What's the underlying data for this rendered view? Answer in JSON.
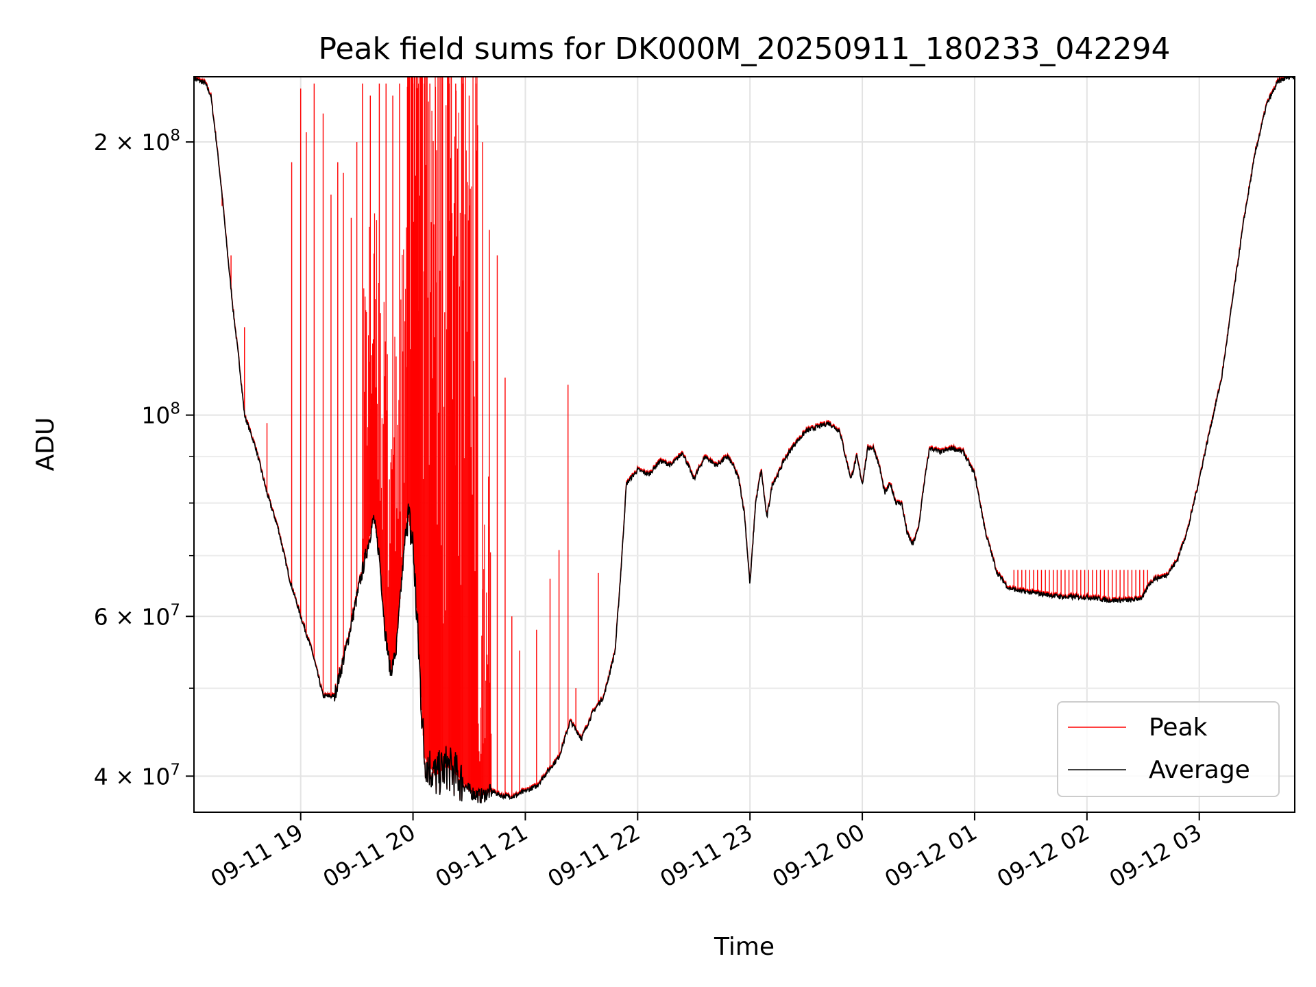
{
  "chart_data": {
    "type": "line",
    "title": "Peak field sums for DK000M_20250911_180233_042294",
    "xlabel": "Time",
    "ylabel": "ADU",
    "yscale": "log",
    "xlim_hours": [
      18.05,
      3.85
    ],
    "ylim": [
      36500000,
      236000000
    ],
    "grid": true,
    "legend_position": "lower-right",
    "x_ticks": [
      {
        "h": 19,
        "label": "09-11 19"
      },
      {
        "h": 20,
        "label": "09-11 20"
      },
      {
        "h": 21,
        "label": "09-11 21"
      },
      {
        "h": 22,
        "label": "09-11 22"
      },
      {
        "h": 23,
        "label": "09-11 23"
      },
      {
        "h": 24,
        "label": "09-12 00"
      },
      {
        "h": 25,
        "label": "09-12 01"
      },
      {
        "h": 26,
        "label": "09-12 02"
      },
      {
        "h": 27,
        "label": "09-12 03"
      }
    ],
    "y_ticks_major": [
      {
        "v": 40000000,
        "mant": "4",
        "exp": "7",
        "label": "4 × 10^7"
      },
      {
        "v": 60000000,
        "mant": "6",
        "exp": "7",
        "label": "6 × 10^7"
      },
      {
        "v": 100000000,
        "mant": "",
        "exp": "8",
        "label": "10^8"
      },
      {
        "v": 200000000,
        "mant": "2",
        "exp": "8",
        "label": "2 × 10^8"
      }
    ],
    "y_ticks_minor": [
      50000000,
      70000000,
      80000000,
      90000000
    ],
    "series": [
      {
        "name": "Peak",
        "color": "#ff0000",
        "note": "baseline follows Average; spikes listed as [hour, ADU]",
        "spikes": [
          [
            18.25,
            200000000
          ],
          [
            18.3,
            170000000
          ],
          [
            18.38,
            150000000
          ],
          [
            18.5,
            125000000
          ],
          [
            18.7,
            98000000
          ],
          [
            18.92,
            190000000
          ],
          [
            19.0,
            229000000
          ],
          [
            19.05,
            205000000
          ],
          [
            19.12,
            232000000
          ],
          [
            19.2,
            215000000
          ],
          [
            19.27,
            175000000
          ],
          [
            19.33,
            190000000
          ],
          [
            19.38,
            185000000
          ],
          [
            19.45,
            165000000
          ],
          [
            19.5,
            200000000
          ],
          [
            19.55,
            232000000
          ],
          [
            19.62,
            225000000
          ],
          [
            19.7,
            232000000
          ],
          [
            19.76,
            232000000
          ],
          [
            19.82,
            225000000
          ],
          [
            19.88,
            232000000
          ],
          [
            19.95,
            230000000
          ],
          [
            20.0,
            232000000
          ],
          [
            20.05,
            232000000
          ],
          [
            20.1,
            232000000
          ],
          [
            20.15,
            232000000
          ],
          [
            20.2,
            230000000
          ],
          [
            20.26,
            232000000
          ],
          [
            20.32,
            232000000
          ],
          [
            20.38,
            232000000
          ],
          [
            20.44,
            232000000
          ],
          [
            20.5,
            225000000
          ],
          [
            20.56,
            232000000
          ],
          [
            20.62,
            200000000
          ],
          [
            20.68,
            160000000
          ],
          [
            20.75,
            150000000
          ],
          [
            20.82,
            110000000
          ],
          [
            20.88,
            60000000
          ],
          [
            20.95,
            55000000
          ],
          [
            21.1,
            58000000
          ],
          [
            21.22,
            66000000
          ],
          [
            21.3,
            71000000
          ],
          [
            21.38,
            108000000
          ],
          [
            21.45,
            50000000
          ],
          [
            21.65,
            67000000
          ]
        ],
        "plateau_spikes_range_h": [
          25.35,
          26.55
        ],
        "plateau_spikes_top": 67500000
      },
      {
        "name": "Average",
        "color": "#000000",
        "x": [
          18.05,
          18.15,
          18.2,
          18.25,
          18.3,
          18.35,
          18.4,
          18.45,
          18.5,
          18.6,
          18.7,
          18.8,
          18.9,
          19.0,
          19.1,
          19.2,
          19.3,
          19.4,
          19.5,
          19.6,
          19.65,
          19.7,
          19.75,
          19.8,
          19.85,
          19.9,
          19.95,
          20.0,
          20.05,
          20.1,
          20.2,
          20.3,
          20.4,
          20.5,
          20.6,
          20.7,
          20.8,
          20.9,
          21.0,
          21.1,
          21.2,
          21.3,
          21.4,
          21.45,
          21.5,
          21.6,
          21.7,
          21.8,
          21.85,
          21.9,
          22.0,
          22.1,
          22.2,
          22.3,
          22.4,
          22.5,
          22.6,
          22.7,
          22.8,
          22.85,
          22.9,
          22.95,
          23.0,
          23.05,
          23.1,
          23.15,
          23.2,
          23.25,
          23.3,
          23.4,
          23.5,
          23.6,
          23.7,
          23.8,
          23.85,
          23.9,
          23.95,
          24.0,
          24.05,
          24.1,
          24.15,
          24.2,
          24.25,
          24.3,
          24.35,
          24.4,
          24.45,
          24.5,
          24.55,
          24.6,
          24.7,
          24.8,
          24.9,
          25.0,
          25.1,
          25.2,
          25.3,
          25.4,
          25.6,
          25.8,
          26.0,
          26.2,
          26.4,
          26.5,
          26.55,
          26.6,
          26.7,
          26.8,
          26.9,
          27.0,
          27.1,
          27.2,
          27.3,
          27.4,
          27.5,
          27.6,
          27.7,
          27.8,
          27.85
        ],
        "y": [
          235000000,
          232000000,
          225000000,
          200000000,
          175000000,
          150000000,
          130000000,
          115000000,
          100000000,
          92000000,
          82000000,
          75000000,
          66000000,
          60000000,
          55000000,
          49000000,
          49000000,
          55000000,
          63000000,
          72000000,
          77000000,
          70000000,
          58000000,
          52000000,
          55000000,
          66000000,
          78000000,
          72000000,
          55000000,
          42000000,
          40000000,
          41000000,
          40000000,
          38500000,
          38000000,
          38500000,
          38000000,
          38000000,
          38500000,
          39000000,
          40500000,
          42000000,
          46000000,
          45000000,
          44000000,
          47000000,
          49000000,
          55000000,
          67000000,
          84000000,
          87000000,
          86000000,
          89000000,
          88000000,
          91000000,
          85000000,
          90000000,
          88000000,
          90000000,
          88000000,
          85000000,
          78000000,
          65000000,
          80000000,
          87000000,
          77000000,
          84000000,
          86000000,
          89000000,
          93000000,
          96000000,
          97000000,
          98000000,
          96000000,
          90000000,
          85000000,
          90000000,
          84000000,
          92000000,
          92000000,
          88000000,
          82000000,
          84000000,
          80000000,
          80000000,
          74000000,
          72000000,
          75000000,
          84000000,
          92000000,
          91000000,
          92000000,
          91000000,
          86000000,
          74000000,
          67000000,
          64500000,
          64000000,
          63500000,
          63000000,
          63000000,
          62500000,
          62500000,
          63000000,
          65000000,
          66000000,
          66500000,
          69000000,
          75000000,
          85000000,
          97000000,
          110000000,
          135000000,
          165000000,
          195000000,
          220000000,
          233000000,
          236000000,
          236000000
        ]
      }
    ]
  }
}
